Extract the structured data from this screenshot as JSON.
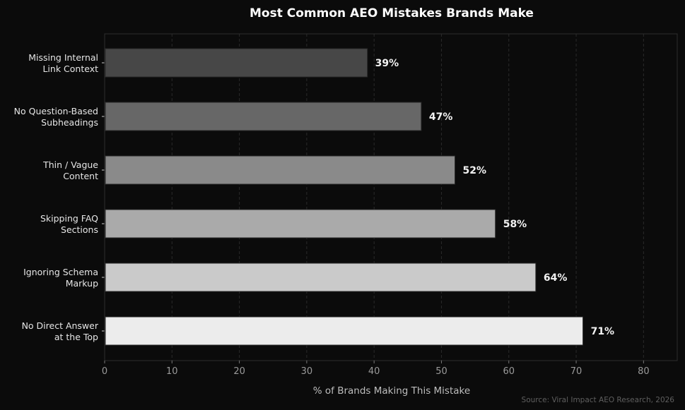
{
  "chart_data": {
    "type": "bar",
    "orientation": "horizontal",
    "title": "Most Common AEO Mistakes Brands Make",
    "xlabel": "% of Brands Making This Mistake",
    "ylabel": "",
    "xlim": [
      0,
      85
    ],
    "xticks": [
      0,
      10,
      20,
      30,
      40,
      50,
      60,
      70,
      80
    ],
    "grid": "vertical dashed",
    "categories": [
      [
        "Missing Internal",
        "Link Context"
      ],
      [
        "No Question-Based",
        "Subheadings"
      ],
      [
        "Thin / Vague",
        "Content"
      ],
      [
        "Skipping FAQ",
        "Sections"
      ],
      [
        "Ignoring Schema",
        "Markup"
      ],
      [
        "No Direct Answer",
        "at the Top"
      ]
    ],
    "values": [
      39,
      47,
      52,
      58,
      64,
      71
    ],
    "data_labels": [
      "39%",
      "47%",
      "52%",
      "58%",
      "64%",
      "71%"
    ],
    "colors": [
      "#474747",
      "#676767",
      "#8a8a8a",
      "#aaaaaa",
      "#cacaca",
      "#ececec"
    ],
    "source": "Source: Viral Impact AEO Research, 2026"
  }
}
